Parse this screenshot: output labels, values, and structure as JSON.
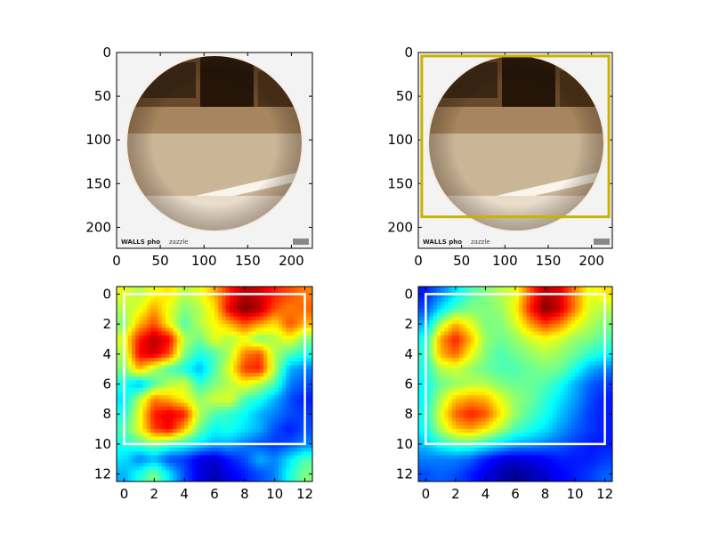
{
  "chart_data": [
    {
      "type": "image",
      "panel": "original-photo",
      "xlim": [
        0,
        224
      ],
      "ylim": [
        224,
        0
      ],
      "xticks": [
        0,
        50,
        100,
        150,
        200
      ],
      "yticks": [
        0,
        50,
        100,
        150,
        200
      ],
      "overlay_text": [
        "WALLS pho",
        "zazzle"
      ]
    },
    {
      "type": "image",
      "panel": "photo-with-box",
      "xlim": [
        0,
        224
      ],
      "ylim": [
        224,
        0
      ],
      "xticks": [
        0,
        50,
        100,
        150,
        200
      ],
      "yticks": [
        0,
        50,
        100,
        150,
        200
      ],
      "box": {
        "x0": 4,
        "y0": 4,
        "x1": 220,
        "y1": 188,
        "color": "#c8b400"
      },
      "overlay_text": [
        "WALLS pho",
        "zazzle"
      ]
    },
    {
      "type": "heatmap",
      "panel": "attention-map-fine",
      "colormap": "jet",
      "xlim": [
        -0.5,
        12.5
      ],
      "ylim": [
        12.5,
        -0.5
      ],
      "xticks": [
        0,
        2,
        4,
        6,
        8,
        10,
        12
      ],
      "yticks": [
        0,
        2,
        4,
        6,
        8,
        10,
        12
      ],
      "box": {
        "x0": 0,
        "y0": 0,
        "x1": 12,
        "y1": 10,
        "color": "#ffffff"
      },
      "grid": [
        [
          0.6,
          0.55,
          0.62,
          0.65,
          0.55,
          0.6,
          0.7,
          0.85,
          0.95,
          0.92,
          0.85,
          0.8,
          0.75
        ],
        [
          0.55,
          0.6,
          0.72,
          0.6,
          0.5,
          0.55,
          0.65,
          0.9,
          1.0,
          0.95,
          0.8,
          0.75,
          0.78
        ],
        [
          0.5,
          0.7,
          0.8,
          0.62,
          0.45,
          0.55,
          0.62,
          0.7,
          0.8,
          0.72,
          0.65,
          0.8,
          0.7
        ],
        [
          0.6,
          0.85,
          0.95,
          0.88,
          0.55,
          0.48,
          0.6,
          0.55,
          0.6,
          0.5,
          0.55,
          0.62,
          0.5
        ],
        [
          0.55,
          0.88,
          0.92,
          0.8,
          0.5,
          0.4,
          0.45,
          0.55,
          0.75,
          0.8,
          0.55,
          0.45,
          0.4
        ],
        [
          0.5,
          0.7,
          0.55,
          0.45,
          0.4,
          0.3,
          0.45,
          0.6,
          0.82,
          0.85,
          0.55,
          0.3,
          0.25
        ],
        [
          0.4,
          0.3,
          0.45,
          0.55,
          0.58,
          0.42,
          0.5,
          0.55,
          0.62,
          0.55,
          0.45,
          0.25,
          0.2
        ],
        [
          0.35,
          0.55,
          0.75,
          0.7,
          0.62,
          0.52,
          0.58,
          0.6,
          0.45,
          0.4,
          0.3,
          0.2,
          0.15
        ],
        [
          0.4,
          0.6,
          0.85,
          0.9,
          0.85,
          0.55,
          0.45,
          0.42,
          0.38,
          0.3,
          0.25,
          0.2,
          0.18
        ],
        [
          0.45,
          0.6,
          0.82,
          0.88,
          0.7,
          0.48,
          0.38,
          0.4,
          0.35,
          0.3,
          0.2,
          0.15,
          0.2
        ],
        [
          0.4,
          0.45,
          0.5,
          0.45,
          0.4,
          0.35,
          0.3,
          0.3,
          0.25,
          0.2,
          0.18,
          0.2,
          0.25
        ],
        [
          0.35,
          0.25,
          0.3,
          0.2,
          0.18,
          0.1,
          0.08,
          0.15,
          0.2,
          0.3,
          0.25,
          0.35,
          0.45
        ],
        [
          0.3,
          0.4,
          0.5,
          0.35,
          0.2,
          0.1,
          0.05,
          0.1,
          0.15,
          0.2,
          0.25,
          0.4,
          0.5
        ]
      ]
    },
    {
      "type": "heatmap",
      "panel": "attention-map-smooth",
      "colormap": "jet",
      "xlim": [
        -0.5,
        12.5
      ],
      "ylim": [
        12.5,
        -0.5
      ],
      "xticks": [
        0,
        2,
        4,
        6,
        8,
        10,
        12
      ],
      "yticks": [
        0,
        2,
        4,
        6,
        8,
        10,
        12
      ],
      "box": {
        "x0": 0,
        "y0": 0,
        "x1": 12,
        "y1": 10,
        "color": "#ffffff"
      },
      "grid": [
        [
          0.15,
          0.25,
          0.35,
          0.45,
          0.5,
          0.55,
          0.6,
          0.8,
          0.95,
          0.9,
          0.75,
          0.6,
          0.65
        ],
        [
          0.2,
          0.35,
          0.45,
          0.5,
          0.5,
          0.52,
          0.62,
          0.85,
          1.0,
          0.92,
          0.75,
          0.58,
          0.55
        ],
        [
          0.3,
          0.55,
          0.7,
          0.6,
          0.5,
          0.5,
          0.58,
          0.72,
          0.82,
          0.75,
          0.62,
          0.55,
          0.5
        ],
        [
          0.4,
          0.72,
          0.85,
          0.7,
          0.52,
          0.48,
          0.52,
          0.58,
          0.62,
          0.58,
          0.52,
          0.5,
          0.45
        ],
        [
          0.42,
          0.7,
          0.78,
          0.62,
          0.5,
          0.45,
          0.48,
          0.52,
          0.55,
          0.52,
          0.48,
          0.42,
          0.38
        ],
        [
          0.4,
          0.55,
          0.58,
          0.52,
          0.48,
          0.45,
          0.45,
          0.48,
          0.5,
          0.48,
          0.4,
          0.3,
          0.25
        ],
        [
          0.38,
          0.48,
          0.52,
          0.55,
          0.55,
          0.5,
          0.48,
          0.48,
          0.45,
          0.4,
          0.3,
          0.22,
          0.18
        ],
        [
          0.38,
          0.55,
          0.68,
          0.72,
          0.7,
          0.6,
          0.52,
          0.48,
          0.42,
          0.35,
          0.28,
          0.2,
          0.15
        ],
        [
          0.4,
          0.6,
          0.78,
          0.85,
          0.8,
          0.65,
          0.52,
          0.45,
          0.4,
          0.32,
          0.25,
          0.18,
          0.15
        ],
        [
          0.38,
          0.55,
          0.68,
          0.72,
          0.65,
          0.55,
          0.45,
          0.4,
          0.35,
          0.28,
          0.22,
          0.18,
          0.15
        ],
        [
          0.32,
          0.4,
          0.45,
          0.45,
          0.4,
          0.35,
          0.3,
          0.28,
          0.25,
          0.22,
          0.18,
          0.15,
          0.15
        ],
        [
          0.25,
          0.25,
          0.25,
          0.22,
          0.15,
          0.1,
          0.08,
          0.1,
          0.12,
          0.15,
          0.15,
          0.15,
          0.18
        ],
        [
          0.2,
          0.22,
          0.2,
          0.15,
          0.1,
          0.05,
          0.02,
          0.05,
          0.08,
          0.12,
          0.15,
          0.18,
          0.22
        ]
      ]
    }
  ]
}
